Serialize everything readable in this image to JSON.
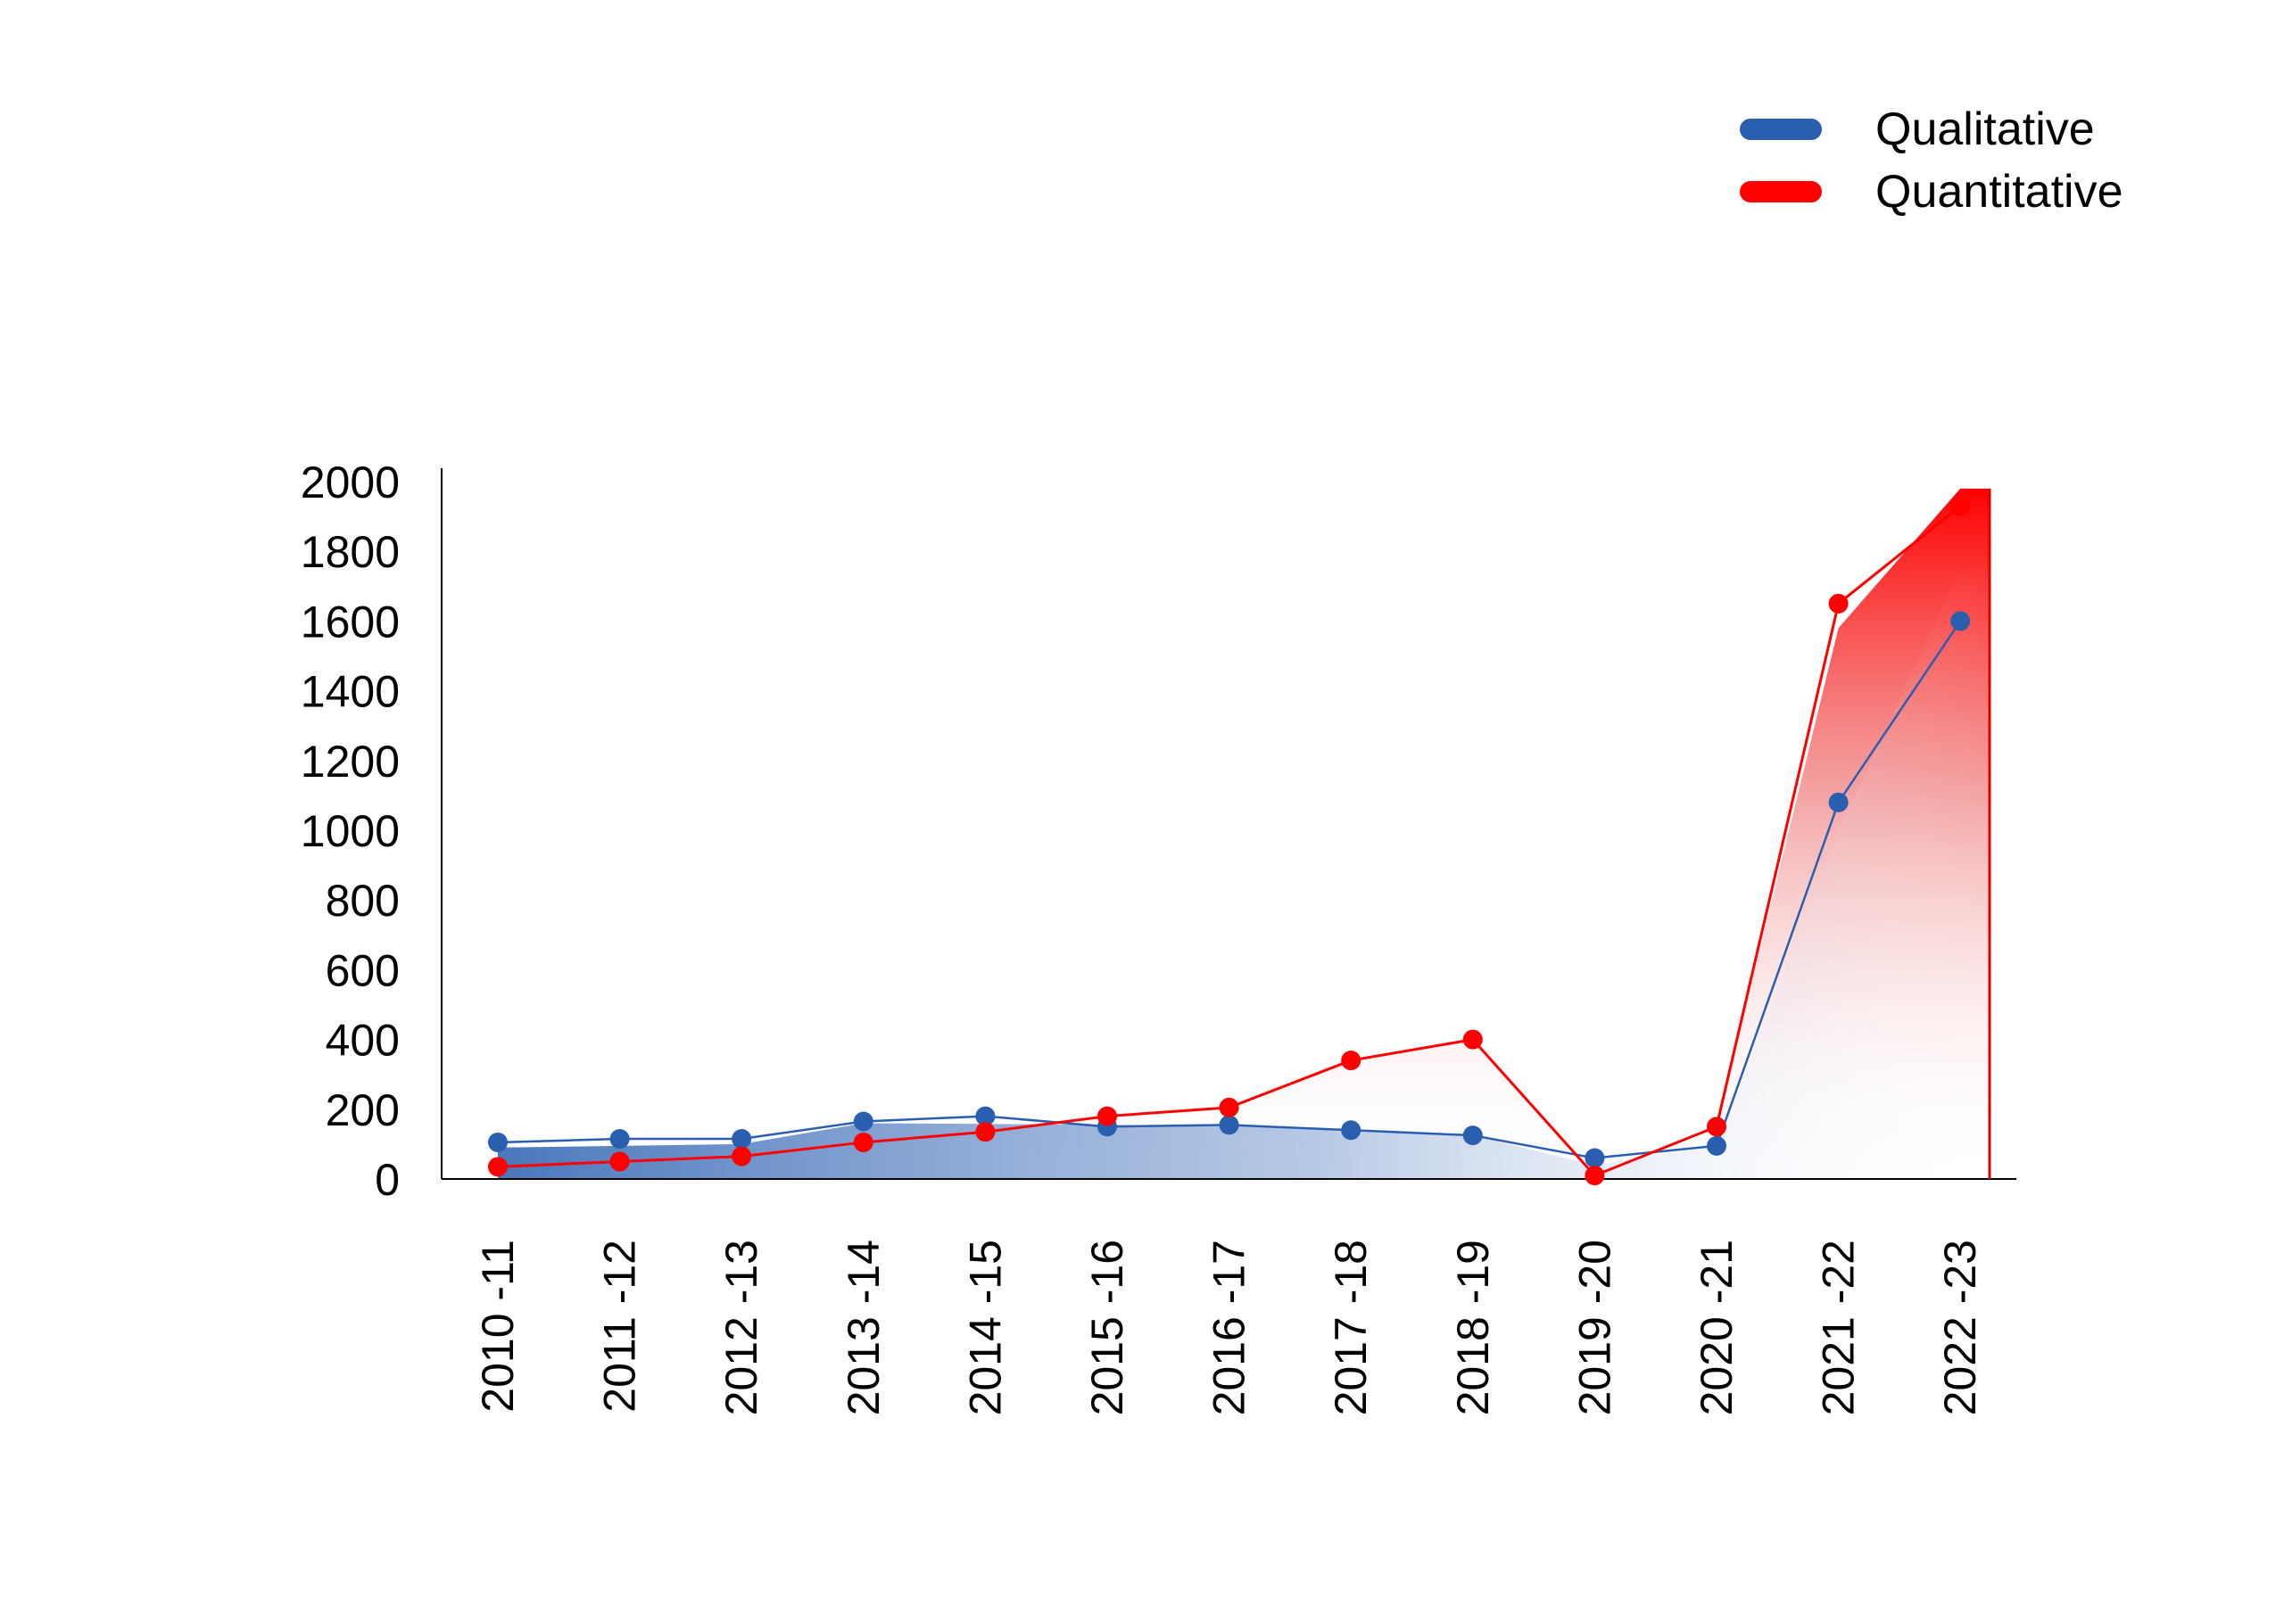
{
  "chart_data": {
    "type": "area",
    "title": "",
    "xlabel": "",
    "ylabel": "",
    "categories": [
      "2010 -11",
      "2011 -12",
      "2012 -13",
      "2013 -14",
      "2014 -15",
      "2015 -16",
      "2016 -17",
      "2017 -18",
      "2018 -19",
      "2019 -20",
      "2020 -21",
      "2021 -22",
      "2022 -23"
    ],
    "series": [
      {
        "name": "Qualitative",
        "color": "#2a5fb0",
        "values": [
          105,
          115,
          115,
          165,
          180,
          150,
          155,
          140,
          125,
          60,
          95,
          1080,
          1600
        ],
        "area_fill_top": [
          90,
          95,
          100,
          160,
          158,
          155,
          153,
          140,
          125,
          40,
          95,
          1000,
          1750
        ]
      },
      {
        "name": "Quantitative",
        "color": "#ff0000",
        "values": [
          35,
          50,
          65,
          105,
          135,
          180,
          205,
          340,
          400,
          10,
          150,
          1650,
          1930
        ],
        "area_fill_top": [
          35,
          50,
          65,
          105,
          135,
          180,
          205,
          340,
          400,
          10,
          150,
          1580,
          1980
        ]
      }
    ],
    "ylim": [
      0,
      2000
    ],
    "yticks": [
      "2000",
      "1800",
      "1600",
      "1400",
      "1200",
      "1000",
      "800",
      "600",
      "400",
      "200",
      "0"
    ],
    "ytick_values": [
      2000,
      1800,
      1600,
      1400,
      1200,
      1000,
      800,
      600,
      400,
      200,
      0
    ],
    "grid": false,
    "legend": "top-right"
  }
}
